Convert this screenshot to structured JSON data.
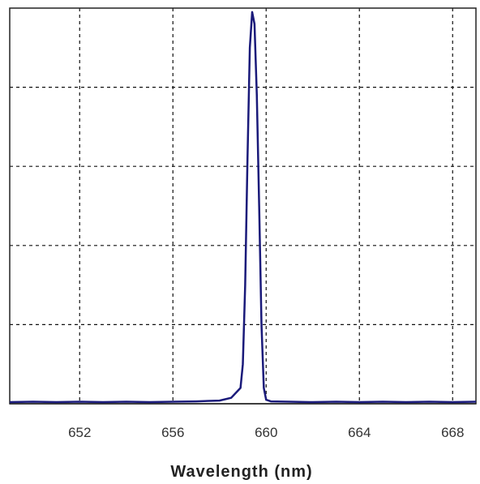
{
  "chart_data": {
    "type": "line",
    "title": "",
    "xlabel": "Wavelength (nm)",
    "ylabel": "",
    "xlim": [
      649,
      669
    ],
    "ylim": [
      0,
      1
    ],
    "x_ticks": [
      652,
      656,
      660,
      664,
      668
    ],
    "x_tick_labels": [
      "652",
      "656",
      "660",
      "664",
      "668"
    ],
    "y_gridlines": [
      0.2,
      0.4,
      0.6,
      0.8
    ],
    "grid": true,
    "grid_style": "dashed",
    "legend": "none",
    "series": [
      {
        "color": "#1a1a7a",
        "x": [
          649.0,
          650.0,
          651.0,
          652.0,
          653.0,
          654.0,
          655.0,
          656.0,
          657.0,
          658.0,
          658.5,
          658.9,
          659.0,
          659.1,
          659.2,
          659.3,
          659.4,
          659.5,
          659.6,
          659.7,
          659.8,
          659.9,
          660.0,
          660.2,
          661.0,
          662.0,
          663.0,
          664.0,
          665.0,
          666.0,
          667.0,
          668.0,
          669.0
        ],
        "y": [
          0.004,
          0.005,
          0.004,
          0.005,
          0.004,
          0.005,
          0.004,
          0.005,
          0.006,
          0.008,
          0.015,
          0.04,
          0.1,
          0.3,
          0.62,
          0.9,
          0.99,
          0.96,
          0.78,
          0.5,
          0.2,
          0.04,
          0.01,
          0.006,
          0.005,
          0.004,
          0.005,
          0.004,
          0.005,
          0.004,
          0.005,
          0.004,
          0.005
        ]
      }
    ]
  }
}
